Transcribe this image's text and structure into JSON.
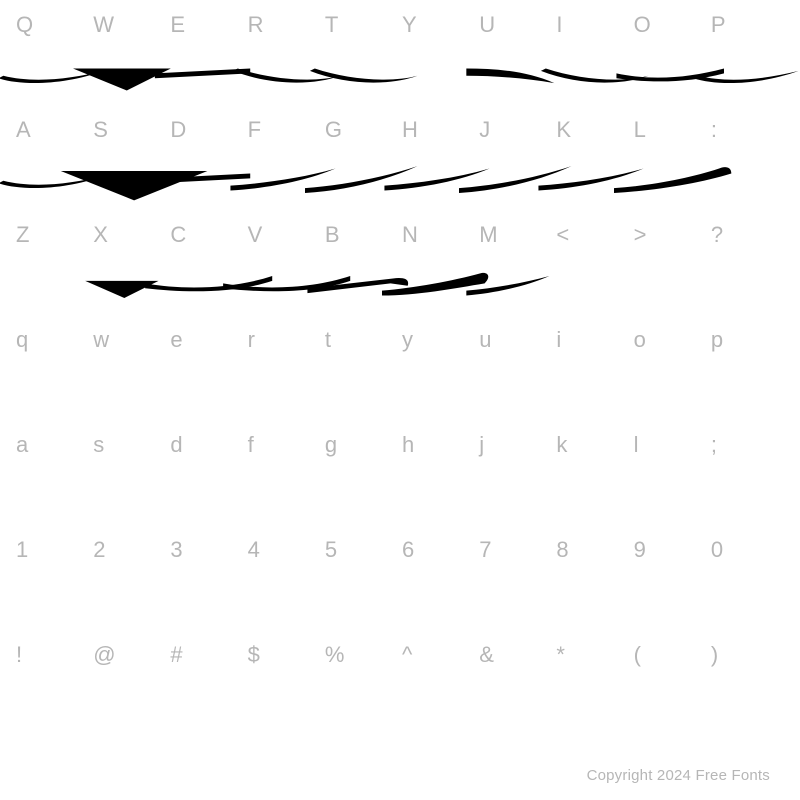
{
  "font_specimen": {
    "label_color": "#b6b6b6",
    "glyph_color": "#000000",
    "background_color": "#ffffff",
    "label_fontsize": 22,
    "rows": [
      {
        "labels": [
          "Q",
          "W",
          "E",
          "R",
          "T",
          "Y",
          "U",
          "I",
          "O",
          "P"
        ],
        "has_glyphs": true,
        "glyph_shapes": [
          "swoosh-left",
          "v-drop",
          "flat-dash",
          "swoosh-right",
          "swoosh-right",
          "",
          "curve-down",
          "swoosh-right",
          "flat-curve",
          "swoosh-left"
        ]
      },
      {
        "labels": [
          "A",
          "S",
          "D",
          "F",
          "G",
          "H",
          "J",
          "K",
          "L",
          ":"
        ],
        "has_glyphs": true,
        "glyph_shapes": [
          "swoosh-left",
          "big-v-drop",
          "flat-dash",
          "curve-up",
          "curve-up-2",
          "curve-up",
          "curve-up-2",
          "curve-up",
          "curve-up-tail",
          ""
        ]
      },
      {
        "labels": [
          "Z",
          "X",
          "C",
          "V",
          "B",
          "N",
          "M",
          "<",
          ">",
          "?"
        ],
        "has_glyphs": true,
        "glyph_shapes": [
          "",
          "v-drop-small",
          "flat-curve-long",
          "flat-curve-long",
          "hook-right",
          "hook-curve",
          "curve-up-small",
          "",
          "",
          ""
        ]
      },
      {
        "labels": [
          "q",
          "w",
          "e",
          "r",
          "t",
          "y",
          "u",
          "i",
          "o",
          "p"
        ],
        "has_glyphs": false
      },
      {
        "labels": [
          "a",
          "s",
          "d",
          "f",
          "g",
          "h",
          "j",
          "k",
          "l",
          ";"
        ],
        "has_glyphs": false
      },
      {
        "labels": [
          "1",
          "2",
          "3",
          "4",
          "5",
          "6",
          "7",
          "8",
          "9",
          "0"
        ],
        "has_glyphs": false
      },
      {
        "labels": [
          "!",
          "@",
          "#",
          "$",
          "%",
          "^",
          "&",
          "*",
          "(",
          ")"
        ],
        "has_glyphs": false
      }
    ],
    "copyright": "Copyright 2024 Free Fonts"
  }
}
